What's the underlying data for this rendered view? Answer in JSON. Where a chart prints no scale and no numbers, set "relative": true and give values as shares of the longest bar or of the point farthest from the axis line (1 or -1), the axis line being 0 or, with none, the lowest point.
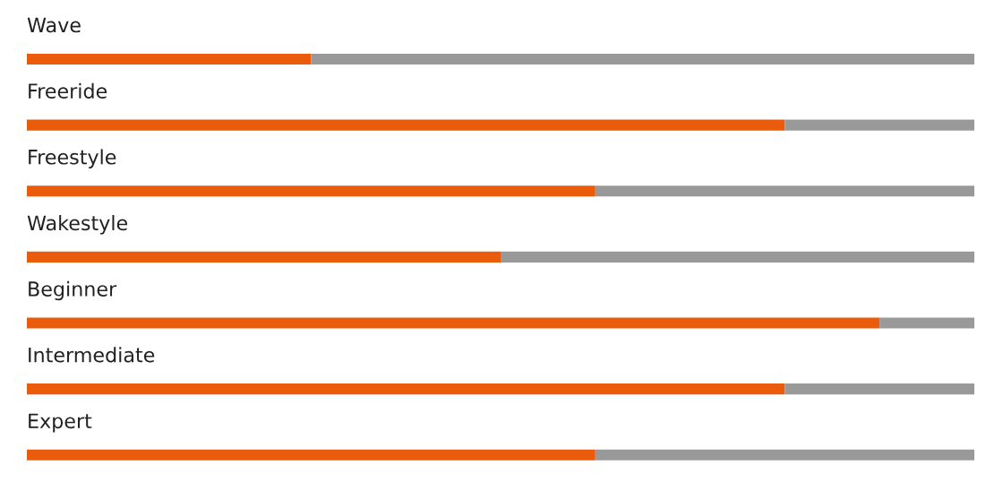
{
  "chart_data": {
    "type": "bar",
    "orientation": "horizontal",
    "stacked": true,
    "relative": true,
    "legend": false,
    "categories": [
      "Wave",
      "Freeride",
      "Freestyle",
      "Wakestyle",
      "Beginner",
      "Intermediate",
      "Expert"
    ],
    "series": [
      {
        "color": "#ea5b0c",
        "values": [
          0.3,
          0.8,
          0.6,
          0.5,
          0.9,
          0.8,
          0.6
        ]
      },
      {
        "color": "#999999",
        "values": [
          0.7,
          0.2,
          0.4,
          0.5,
          0.1,
          0.2,
          0.4
        ]
      }
    ]
  }
}
